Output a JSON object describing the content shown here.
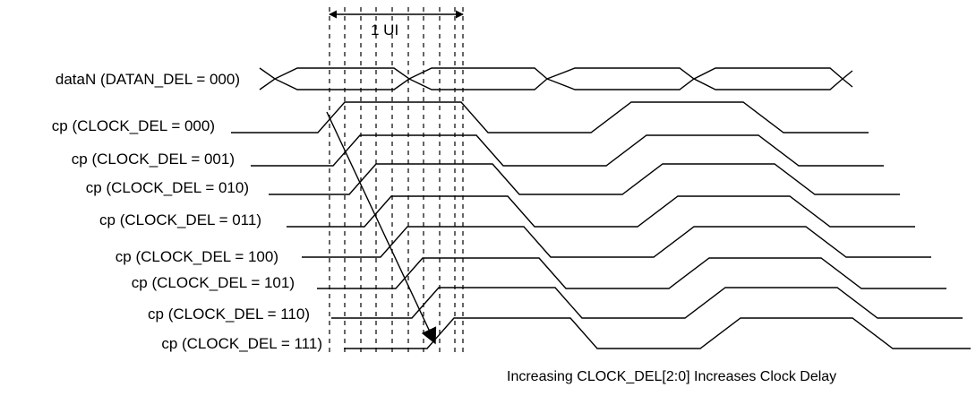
{
  "ui_span_label": "1  UI",
  "data_signal": {
    "label": "dataN (DATAN_DEL = 000)"
  },
  "clock_signals": [
    {
      "label": "cp (CLOCK_DEL = 000)"
    },
    {
      "label": "cp (CLOCK_DEL = 001)"
    },
    {
      "label": "cp (CLOCK_DEL = 010)"
    },
    {
      "label": "cp (CLOCK_DEL = 011)"
    },
    {
      "label": "cp (CLOCK_DEL = 100)"
    },
    {
      "label": "cp (CLOCK_DEL = 101)"
    },
    {
      "label": "cp (CLOCK_DEL = 110)"
    },
    {
      "label": "cp (CLOCK_DEL = 111)"
    }
  ],
  "caption": "Increasing CLOCK_DEL[2:0] Increases Clock Delay"
}
